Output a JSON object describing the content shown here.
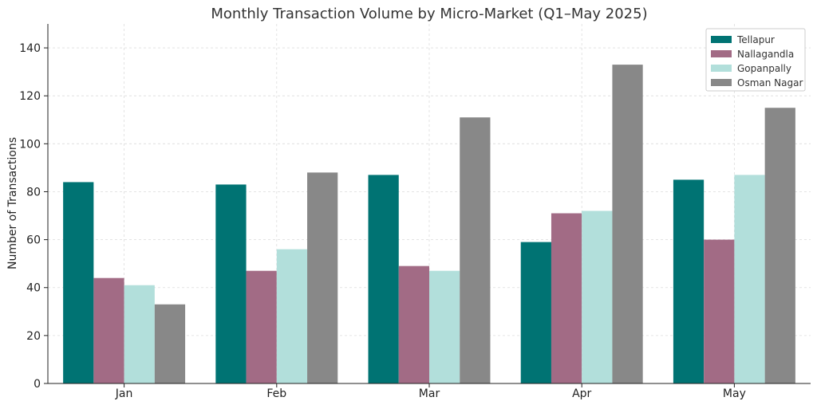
{
  "chart_data": {
    "type": "bar",
    "title": "Monthly Transaction Volume by Micro-Market (Q1–May 2025)",
    "xlabel": "",
    "ylabel": "Number of Transactions",
    "categories": [
      "Jan",
      "Feb",
      "Mar",
      "Apr",
      "May"
    ],
    "ylim": [
      0,
      150
    ],
    "yticks": [
      0,
      20,
      40,
      60,
      80,
      100,
      120,
      140
    ],
    "grid": true,
    "legend_position": "top-right",
    "series": [
      {
        "name": "Tellapur",
        "color": "#007373",
        "values": [
          84,
          83,
          87,
          59,
          85
        ]
      },
      {
        "name": "Nallagandla",
        "color": "#a26b85",
        "values": [
          44,
          47,
          49,
          71,
          60
        ]
      },
      {
        "name": "Gopanpally",
        "color": "#b2dfdb",
        "values": [
          41,
          56,
          47,
          72,
          87
        ]
      },
      {
        "name": "Osman Nagar",
        "color": "#888888",
        "values": [
          33,
          88,
          111,
          133,
          115
        ]
      }
    ]
  }
}
